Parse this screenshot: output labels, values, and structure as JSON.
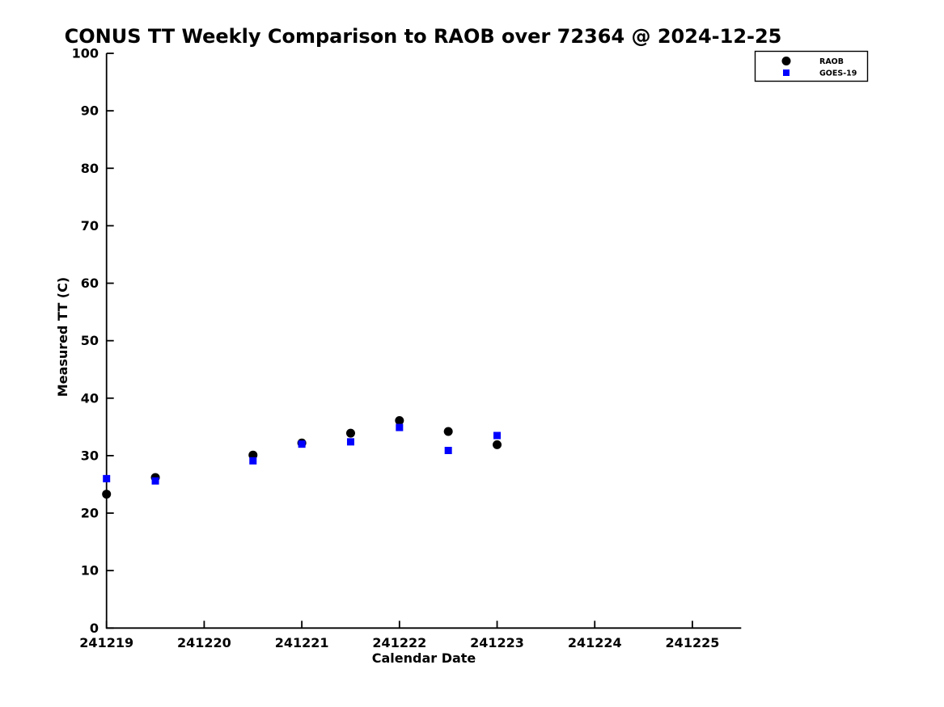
{
  "chart_data": {
    "type": "scatter",
    "title": "CONUS TT Weekly Comparison to RAOB over 72364 @ 2024-12-25",
    "xlabel": "Calendar Date",
    "ylabel": "Measured TT (C)",
    "xlim": [
      241219,
      241225.5
    ],
    "ylim": [
      0,
      100
    ],
    "grid": false,
    "xtick_values": [
      241219,
      241220,
      241221,
      241222,
      241223,
      241224,
      241225
    ],
    "xtick_labels": [
      "241219",
      "241220",
      "241221",
      "241222",
      "241223",
      "241224",
      "241225"
    ],
    "ytick_values": [
      0,
      10,
      20,
      30,
      40,
      50,
      60,
      70,
      80,
      90,
      100
    ],
    "ytick_labels": [
      "0",
      "10",
      "20",
      "30",
      "40",
      "50",
      "60",
      "70",
      "80",
      "90",
      "100"
    ],
    "x": [
      241219,
      241219.5,
      241220.5,
      241221,
      241221.5,
      241222,
      241222.5,
      241223
    ],
    "series": [
      {
        "name": "RAOB",
        "marker": "circle",
        "color": "#000000",
        "values": [
          23.3,
          26.2,
          30.1,
          32.2,
          33.9,
          36.1,
          34.2,
          31.9
        ]
      },
      {
        "name": "GOES-19",
        "marker": "square",
        "color": "#0000FF",
        "values": [
          26.0,
          25.6,
          29.1,
          32.0,
          32.4,
          34.9,
          30.9,
          33.5
        ]
      }
    ],
    "legend": {
      "position": "top-right",
      "entries": [
        "RAOB",
        "GOES-19"
      ]
    },
    "colors": {
      "axis": "#000000",
      "background": "#ffffff",
      "raob": "#000000",
      "goes19": "#0000FF"
    }
  }
}
